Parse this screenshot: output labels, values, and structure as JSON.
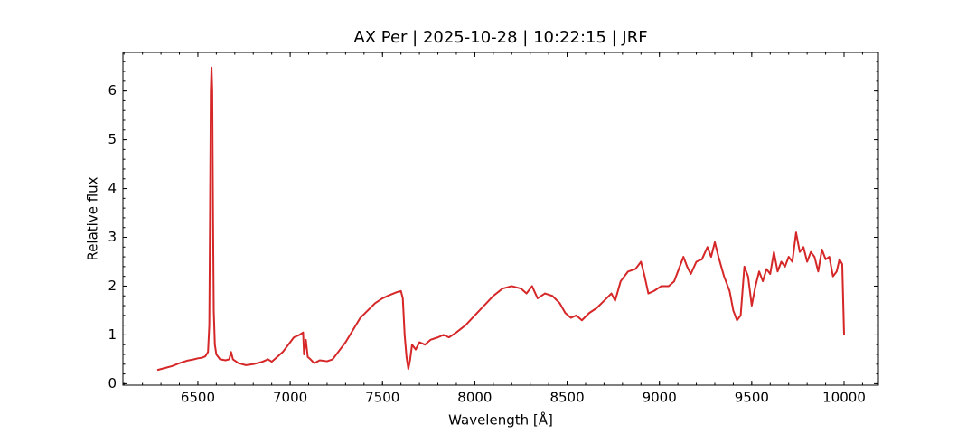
{
  "chart_data": {
    "type": "line",
    "title": "AX Per | 2025-10-28 | 10:22:15 | JRF",
    "xlabel": "Wavelength [Å]",
    "ylabel": "Relative flux",
    "color": "#d62728",
    "x": [
      6280,
      6320,
      6360,
      6400,
      6440,
      6480,
      6500,
      6520,
      6540,
      6555,
      6562,
      6566,
      6570,
      6574,
      6578,
      6582,
      6586,
      6592,
      6600,
      6620,
      6650,
      6670,
      6680,
      6690,
      6720,
      6760,
      6800,
      6850,
      6880,
      6900,
      6930,
      6960,
      6990,
      7020,
      7050,
      7070,
      7075,
      7085,
      7095,
      7110,
      7130,
      7160,
      7200,
      7230,
      7260,
      7300,
      7340,
      7380,
      7420,
      7460,
      7500,
      7540,
      7580,
      7600,
      7610,
      7620,
      7630,
      7640,
      7650,
      7660,
      7680,
      7700,
      7730,
      7760,
      7800,
      7830,
      7860,
      7900,
      7950,
      8000,
      8050,
      8100,
      8150,
      8200,
      8250,
      8280,
      8310,
      8340,
      8380,
      8420,
      8460,
      8490,
      8520,
      8550,
      8580,
      8620,
      8660,
      8700,
      8740,
      8760,
      8790,
      8830,
      8870,
      8900,
      8920,
      8940,
      8970,
      9010,
      9050,
      9080,
      9100,
      9130,
      9150,
      9170,
      9200,
      9230,
      9260,
      9280,
      9300,
      9320,
      9350,
      9380,
      9400,
      9420,
      9440,
      9460,
      9480,
      9500,
      9520,
      9540,
      9560,
      9580,
      9600,
      9620,
      9640,
      9660,
      9680,
      9700,
      9720,
      9740,
      9760,
      9780,
      9800,
      9820,
      9840,
      9860,
      9880,
      9900,
      9920,
      9940,
      9960,
      9975,
      9990,
      10000
    ],
    "values": [
      0.28,
      0.32,
      0.36,
      0.42,
      0.47,
      0.5,
      0.52,
      0.53,
      0.56,
      0.65,
      1.2,
      3.5,
      6.0,
      6.48,
      6.0,
      3.5,
      1.5,
      0.8,
      0.6,
      0.5,
      0.48,
      0.5,
      0.65,
      0.5,
      0.42,
      0.38,
      0.4,
      0.45,
      0.5,
      0.45,
      0.55,
      0.65,
      0.8,
      0.95,
      1.0,
      1.05,
      0.6,
      0.9,
      0.55,
      0.5,
      0.42,
      0.48,
      0.46,
      0.5,
      0.65,
      0.85,
      1.1,
      1.35,
      1.5,
      1.65,
      1.75,
      1.82,
      1.88,
      1.9,
      1.75,
      1.0,
      0.55,
      0.3,
      0.5,
      0.8,
      0.7,
      0.85,
      0.8,
      0.9,
      0.95,
      1.0,
      0.95,
      1.05,
      1.2,
      1.4,
      1.6,
      1.8,
      1.95,
      2.0,
      1.95,
      1.85,
      2.0,
      1.75,
      1.85,
      1.8,
      1.65,
      1.45,
      1.35,
      1.4,
      1.3,
      1.45,
      1.55,
      1.7,
      1.85,
      1.7,
      2.1,
      2.3,
      2.35,
      2.5,
      2.2,
      1.85,
      1.9,
      2.0,
      2.0,
      2.1,
      2.3,
      2.6,
      2.4,
      2.25,
      2.5,
      2.55,
      2.8,
      2.6,
      2.9,
      2.6,
      2.2,
      1.9,
      1.5,
      1.3,
      1.4,
      2.4,
      2.2,
      1.6,
      2.0,
      2.3,
      2.1,
      2.35,
      2.25,
      2.7,
      2.3,
      2.5,
      2.4,
      2.6,
      2.5,
      3.1,
      2.7,
      2.8,
      2.5,
      2.7,
      2.6,
      2.3,
      2.75,
      2.55,
      2.6,
      2.2,
      2.3,
      2.55,
      2.45,
      1.0
    ],
    "xlim": [
      6094,
      10186
    ],
    "ylim": [
      -0.03,
      6.79
    ],
    "xticks": [
      6500,
      7000,
      7500,
      8000,
      8500,
      9000,
      9500,
      10000
    ],
    "yticks": [
      0,
      1,
      2,
      3,
      4,
      5,
      6
    ],
    "xminorticks": [
      6100,
      6200,
      6300,
      6400,
      6500,
      6600,
      6700,
      6800,
      6900,
      7000,
      7100,
      7200,
      7300,
      7400,
      7500,
      7600,
      7700,
      7800,
      7900,
      8000,
      8100,
      8200,
      8300,
      8400,
      8500,
      8600,
      8700,
      8800,
      8900,
      9000,
      9100,
      9200,
      9300,
      9400,
      9500,
      9600,
      9700,
      9800,
      9900,
      10000,
      10100
    ],
    "yminorticks": [
      0,
      0.2,
      0.4,
      0.6,
      0.8,
      1,
      1.2,
      1.4,
      1.6,
      1.8,
      2,
      2.2,
      2.4,
      2.6,
      2.8,
      3,
      3.2,
      3.4,
      3.6,
      3.8,
      4,
      4.2,
      4.4,
      4.6,
      4.8,
      5,
      5.2,
      5.4,
      5.6,
      5.8,
      6,
      6.2,
      6.4,
      6.6
    ],
    "grid": false
  }
}
